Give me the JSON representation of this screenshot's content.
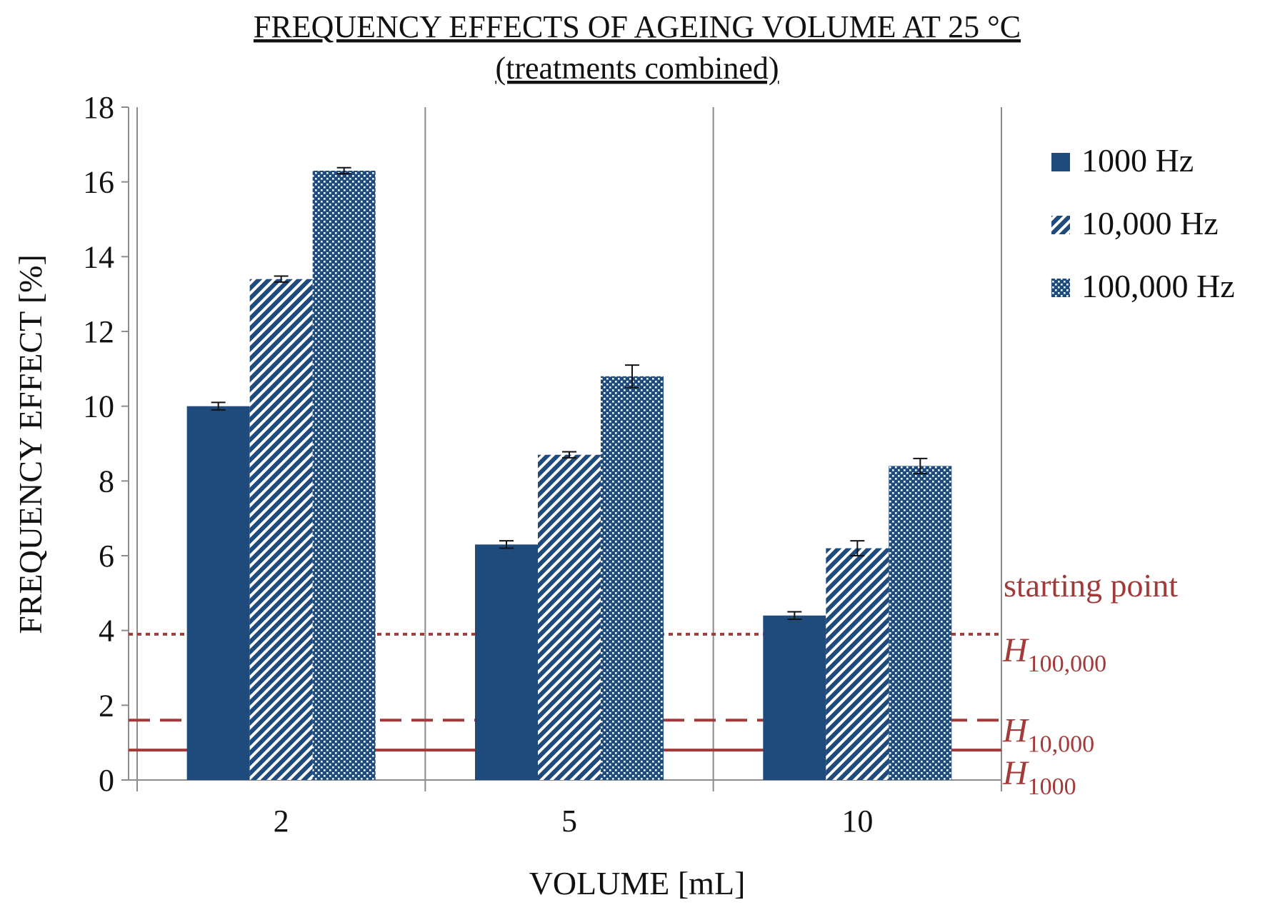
{
  "colors": {
    "bar": "#1f4a7c",
    "reference": "#a33a3a",
    "grid": "#8c8c8c",
    "text": "#111111"
  },
  "chart_data": {
    "type": "bar",
    "title": "FREQUENCY EFFECTS OF AGEING VOLUME AT 25 °C",
    "subtitle": "(treatments combined)",
    "xlabel": "VOLUME [mL]",
    "ylabel": "FREQUENCY EFFECT [%]",
    "ylim": [
      0,
      18
    ],
    "yticks": [
      0,
      2,
      4,
      6,
      8,
      10,
      12,
      14,
      16,
      18
    ],
    "categories": [
      "2",
      "5",
      "10"
    ],
    "legend_position": "top-right",
    "series": [
      {
        "name": "1000 Hz",
        "pattern": "solid",
        "values": [
          10.0,
          6.3,
          4.4
        ],
        "errors": [
          0.1,
          0.1,
          0.1
        ]
      },
      {
        "name": "10,000 Hz",
        "pattern": "diagonal-hatch",
        "values": [
          13.4,
          8.7,
          6.2
        ],
        "errors": [
          0.08,
          0.08,
          0.2
        ]
      },
      {
        "name": "100,000 Hz",
        "pattern": "dotted",
        "values": [
          16.3,
          10.8,
          8.4
        ],
        "errors": [
          0.08,
          0.3,
          0.2
        ]
      }
    ],
    "reference_lines": [
      {
        "name": "H100,000",
        "main": "H",
        "sub": "100,000",
        "value": 3.9,
        "style": "dotted"
      },
      {
        "name": "H10,000",
        "main": "H",
        "sub": "10,000",
        "value": 1.6,
        "style": "dashed"
      },
      {
        "name": "H1000",
        "main": "H",
        "sub": "1000",
        "value": 0.8,
        "style": "solid"
      }
    ],
    "annotation": "starting point"
  }
}
